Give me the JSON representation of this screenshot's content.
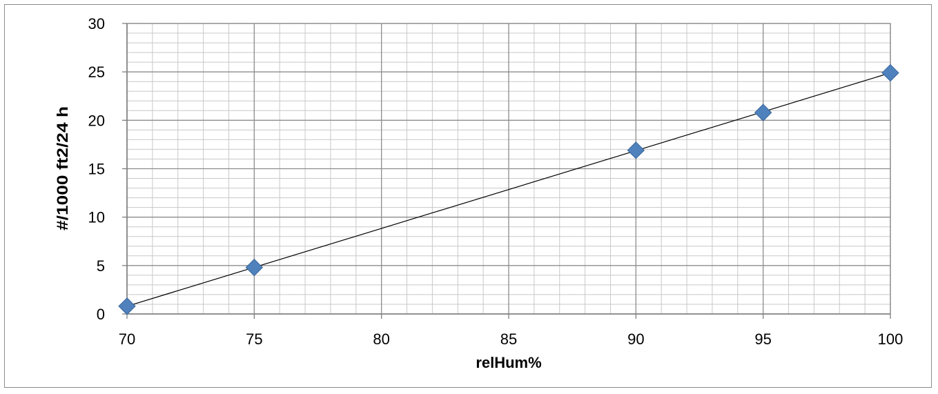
{
  "chart_data": {
    "type": "scatter",
    "title": "",
    "xlabel": "relHum%",
    "ylabel": "#/1000 ft2/24 h",
    "xlim": [
      70,
      100
    ],
    "ylim": [
      0,
      30
    ],
    "x_ticks": [
      70,
      75,
      80,
      85,
      90,
      95,
      100
    ],
    "y_ticks": [
      0,
      5,
      10,
      15,
      20,
      25,
      30
    ],
    "x_minor_step": 1,
    "y_minor_step": 1,
    "grid": true,
    "legend": "none",
    "series": [
      {
        "x": [
          70,
          75,
          90,
          95,
          100
        ],
        "y": [
          0.8,
          4.8,
          16.9,
          20.8,
          24.9
        ],
        "marker": "diamond",
        "color": "#4F81BD"
      }
    ],
    "trendline": {
      "type": "linear",
      "x": [
        70,
        100
      ],
      "y": [
        0.8,
        24.9
      ],
      "color": "#000000"
    },
    "colors": {
      "major_grid": "#8c8c8c",
      "minor_grid": "#c8c8c8",
      "marker_edge": "#3A6699"
    }
  }
}
